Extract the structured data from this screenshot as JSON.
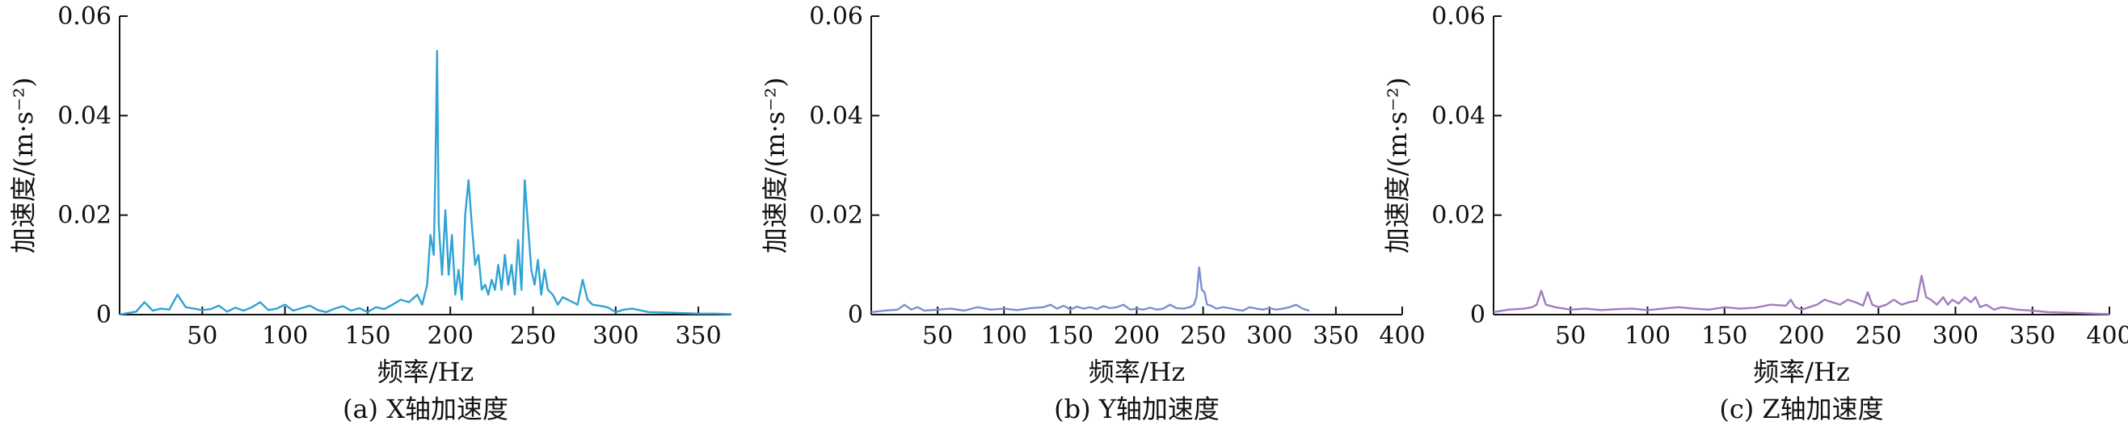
{
  "chart_data": [
    {
      "type": "line",
      "caption": "(a) X轴加速度",
      "xlabel": "频率/Hz",
      "ylabel": "加速度/(m·s⁻²)",
      "xlim": [
        0,
        370
      ],
      "ylim": [
        0,
        0.06
      ],
      "xticks": [
        "50",
        "100",
        "150",
        "200",
        "250",
        "300",
        "350"
      ],
      "yticks": [
        "0",
        "0.02",
        "0.04",
        "0.06"
      ],
      "grid": false,
      "color": "#2fa3d4",
      "series": [
        {
          "x": [
            0,
            5,
            10,
            15,
            20,
            25,
            30,
            35,
            40,
            45,
            50,
            55,
            60,
            65,
            70,
            75,
            80,
            85,
            90,
            95,
            100,
            105,
            110,
            115,
            120,
            125,
            130,
            135,
            140,
            145,
            150,
            155,
            160,
            165,
            170,
            175,
            180,
            183,
            186,
            188,
            190,
            191,
            192,
            193,
            195,
            197,
            199,
            201,
            203,
            205,
            207,
            209,
            211,
            213,
            215,
            217,
            219,
            221,
            223,
            225,
            227,
            229,
            231,
            233,
            235,
            237,
            239,
            241,
            243,
            245,
            247,
            249,
            251,
            253,
            255,
            257,
            259,
            262,
            265,
            268,
            271,
            274,
            277,
            280,
            283,
            286,
            290,
            295,
            300,
            305,
            310,
            320,
            330,
            340,
            350,
            360,
            370
          ],
          "y": [
            0,
            0.0003,
            0.0006,
            0.0025,
            0.0008,
            0.0012,
            0.001,
            0.004,
            0.0015,
            0.0012,
            0.0009,
            0.0011,
            0.0018,
            0.0006,
            0.0014,
            0.0008,
            0.0015,
            0.0025,
            0.0009,
            0.0012,
            0.002,
            0.0008,
            0.0013,
            0.0018,
            0.0009,
            0.0005,
            0.0012,
            0.0017,
            0.0008,
            0.0013,
            0.0005,
            0.0015,
            0.0011,
            0.002,
            0.003,
            0.0025,
            0.004,
            0.002,
            0.006,
            0.016,
            0.012,
            0.03,
            0.053,
            0.018,
            0.008,
            0.021,
            0.008,
            0.016,
            0.004,
            0.009,
            0.003,
            0.02,
            0.027,
            0.018,
            0.01,
            0.012,
            0.005,
            0.006,
            0.004,
            0.007,
            0.005,
            0.01,
            0.005,
            0.012,
            0.006,
            0.01,
            0.004,
            0.015,
            0.005,
            0.027,
            0.018,
            0.009,
            0.006,
            0.011,
            0.004,
            0.009,
            0.005,
            0.004,
            0.002,
            0.0035,
            0.003,
            0.0025,
            0.002,
            0.007,
            0.003,
            0.002,
            0.0018,
            0.0015,
            0.0005,
            0.001,
            0.0012,
            0.0005,
            0.0004,
            0.0003,
            0.0002,
            0.0002,
            0.0001
          ]
        }
      ]
    },
    {
      "type": "line",
      "caption": "(b) Y轴加速度",
      "xlabel": "频率/Hz",
      "ylabel": "加速度/(m·s⁻²)",
      "xlim": [
        0,
        400
      ],
      "ylim": [
        0,
        0.06
      ],
      "xticks": [
        "50",
        "100",
        "150",
        "200",
        "250",
        "300",
        "350",
        "400"
      ],
      "yticks": [
        "0",
        "0.02",
        "0.04",
        "0.06"
      ],
      "grid": false,
      "color": "#7f8fcf",
      "series": [
        {
          "x": [
            0,
            10,
            20,
            25,
            30,
            35,
            40,
            50,
            60,
            70,
            80,
            90,
            100,
            110,
            120,
            130,
            135,
            140,
            145,
            150,
            155,
            160,
            165,
            170,
            175,
            180,
            185,
            190,
            195,
            200,
            205,
            210,
            215,
            220,
            225,
            230,
            235,
            240,
            243,
            245,
            247,
            249,
            251,
            253,
            256,
            260,
            265,
            270,
            275,
            280,
            285,
            290,
            295,
            300,
            305,
            310,
            315,
            320,
            325,
            330
          ],
          "y": [
            0.0005,
            0.0008,
            0.001,
            0.002,
            0.001,
            0.0015,
            0.0008,
            0.001,
            0.0012,
            0.0008,
            0.0015,
            0.001,
            0.0012,
            0.0009,
            0.0013,
            0.0015,
            0.002,
            0.0012,
            0.0018,
            0.001,
            0.0016,
            0.0012,
            0.0015,
            0.0011,
            0.0017,
            0.0013,
            0.0015,
            0.002,
            0.001,
            0.0012,
            0.001,
            0.0014,
            0.001,
            0.0012,
            0.002,
            0.0013,
            0.0012,
            0.0015,
            0.002,
            0.0035,
            0.0095,
            0.005,
            0.0045,
            0.002,
            0.0018,
            0.0012,
            0.0015,
            0.0013,
            0.001,
            0.0008,
            0.0015,
            0.0012,
            0.001,
            0.0013,
            0.001,
            0.0012,
            0.0015,
            0.002,
            0.0012,
            0.0008
          ]
        }
      ]
    },
    {
      "type": "line",
      "caption": "(c) Z轴加速度",
      "xlabel": "频率/Hz",
      "ylabel": "加速度/(m·s⁻²)",
      "xlim": [
        0,
        400
      ],
      "ylim": [
        0,
        0.06
      ],
      "xticks": [
        "50",
        "100",
        "150",
        "200",
        "250",
        "300",
        "350",
        "400"
      ],
      "yticks": [
        "0",
        "0.02",
        "0.04",
        "0.06"
      ],
      "grid": false,
      "color": "#a27cc0",
      "series": [
        {
          "x": [
            0,
            10,
            20,
            25,
            28,
            31,
            34,
            40,
            50,
            60,
            70,
            80,
            90,
            100,
            110,
            120,
            130,
            140,
            150,
            160,
            170,
            180,
            190,
            193,
            196,
            200,
            205,
            210,
            215,
            220,
            225,
            230,
            235,
            240,
            243,
            246,
            250,
            255,
            260,
            265,
            270,
            275,
            278,
            281,
            284,
            288,
            292,
            295,
            298,
            302,
            306,
            310,
            313,
            316,
            320,
            325,
            330,
            340,
            350,
            360,
            370,
            380,
            390,
            400
          ],
          "y": [
            0.0005,
            0.001,
            0.0012,
            0.0015,
            0.002,
            0.0048,
            0.002,
            0.0015,
            0.001,
            0.0012,
            0.0009,
            0.0011,
            0.0012,
            0.0009,
            0.0012,
            0.0015,
            0.0012,
            0.001,
            0.0015,
            0.0012,
            0.0014,
            0.002,
            0.0018,
            0.003,
            0.0015,
            0.001,
            0.0015,
            0.002,
            0.003,
            0.0025,
            0.002,
            0.003,
            0.0025,
            0.0018,
            0.0045,
            0.002,
            0.0015,
            0.002,
            0.003,
            0.002,
            0.0025,
            0.0028,
            0.0078,
            0.0035,
            0.003,
            0.002,
            0.0035,
            0.002,
            0.003,
            0.0022,
            0.0035,
            0.0025,
            0.0035,
            0.0015,
            0.002,
            0.001,
            0.0015,
            0.001,
            0.0008,
            0.0005,
            0.0004,
            0.0003,
            0.0002,
            0.0001
          ]
        }
      ]
    }
  ]
}
